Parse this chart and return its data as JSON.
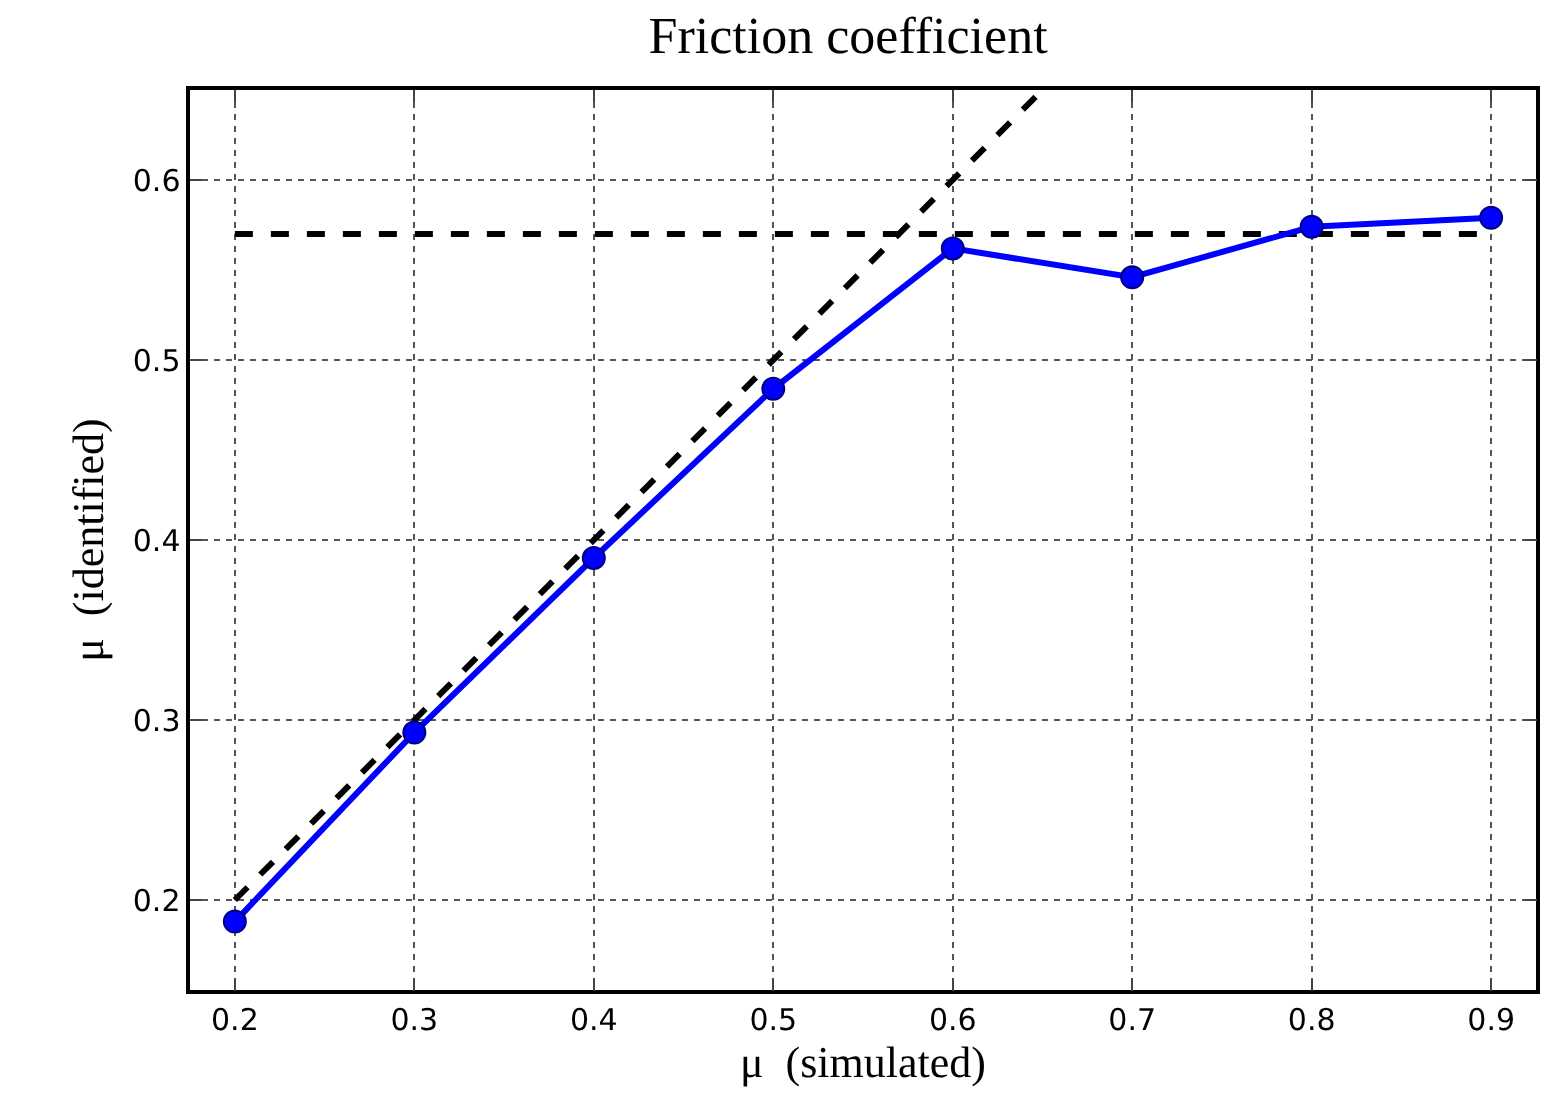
{
  "chart_data": {
    "type": "line",
    "title": "Friction coefficient",
    "xlabel": "μ  (simulated)",
    "ylabel": "μ  (identified)",
    "xlim": [
      0.175,
      0.925
    ],
    "xticks": [
      0.2,
      0.3,
      0.4,
      0.5,
      0.6,
      0.7,
      0.8,
      0.9
    ],
    "ylim": [
      0.15,
      0.65
    ],
    "yticks": [
      0.2,
      0.3,
      0.4,
      0.5,
      0.6
    ],
    "grid": true,
    "series": [
      {
        "color": "#000000",
        "x": [
          0.2,
          0.65
        ],
        "values": [
          0.2,
          0.65
        ],
        "line_style": "dashed",
        "marker": "none"
      },
      {
        "color": "#000000",
        "x": [
          0.2,
          0.9
        ],
        "values": [
          0.57,
          0.57
        ],
        "line_style": "dashed",
        "marker": "none"
      },
      {
        "color": "#0000ff",
        "x": [
          0.2,
          0.3,
          0.4,
          0.5,
          0.6,
          0.7,
          0.8,
          0.9
        ],
        "values": [
          0.188,
          0.293,
          0.39,
          0.484,
          0.562,
          0.546,
          0.574,
          0.579
        ],
        "line_style": "solid",
        "marker": "circle"
      }
    ]
  }
}
